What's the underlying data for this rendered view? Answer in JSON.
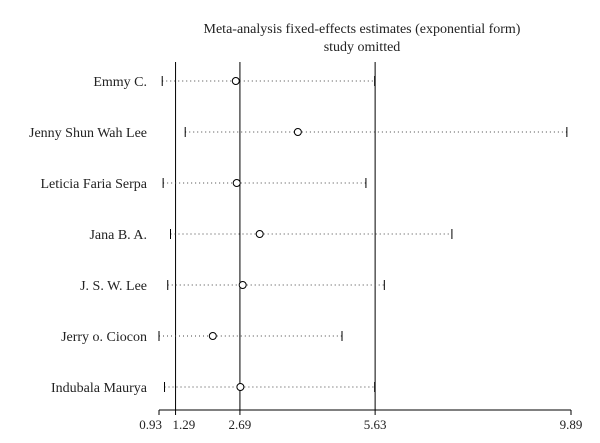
{
  "chart_data": {
    "type": "forest",
    "title": "Meta-analysis fixed-effects estimates (exponential form)",
    "subtitle": "study omitted",
    "x_ticks": [
      0.93,
      1.29,
      2.69,
      5.63,
      9.89
    ],
    "x_tick_labels": [
      "0.93",
      "1.29",
      "2.69",
      "5.63",
      "9.89"
    ],
    "xlim": [
      0.93,
      9.89
    ],
    "reference_lines": [
      1.29,
      2.69,
      5.63
    ],
    "studies": [
      {
        "name": "Emmy C.",
        "lower": 1.0,
        "estimate": 2.6,
        "upper": 5.62
      },
      {
        "name": "Jenny Shun Wah Lee",
        "lower": 1.5,
        "estimate": 3.95,
        "upper": 9.8
      },
      {
        "name": "Leticia Faria Serpa",
        "lower": 1.02,
        "estimate": 2.62,
        "upper": 5.43
      },
      {
        "name": "Jana B. A.",
        "lower": 1.18,
        "estimate": 3.12,
        "upper": 7.3
      },
      {
        "name": "J. S. W. Lee",
        "lower": 1.12,
        "estimate": 2.75,
        "upper": 5.83
      },
      {
        "name": "Jerry o. Ciocon",
        "lower": 0.93,
        "estimate": 2.1,
        "upper": 4.91
      },
      {
        "name": "Indubala Maurya",
        "lower": 1.05,
        "estimate": 2.7,
        "upper": 5.62
      }
    ]
  }
}
